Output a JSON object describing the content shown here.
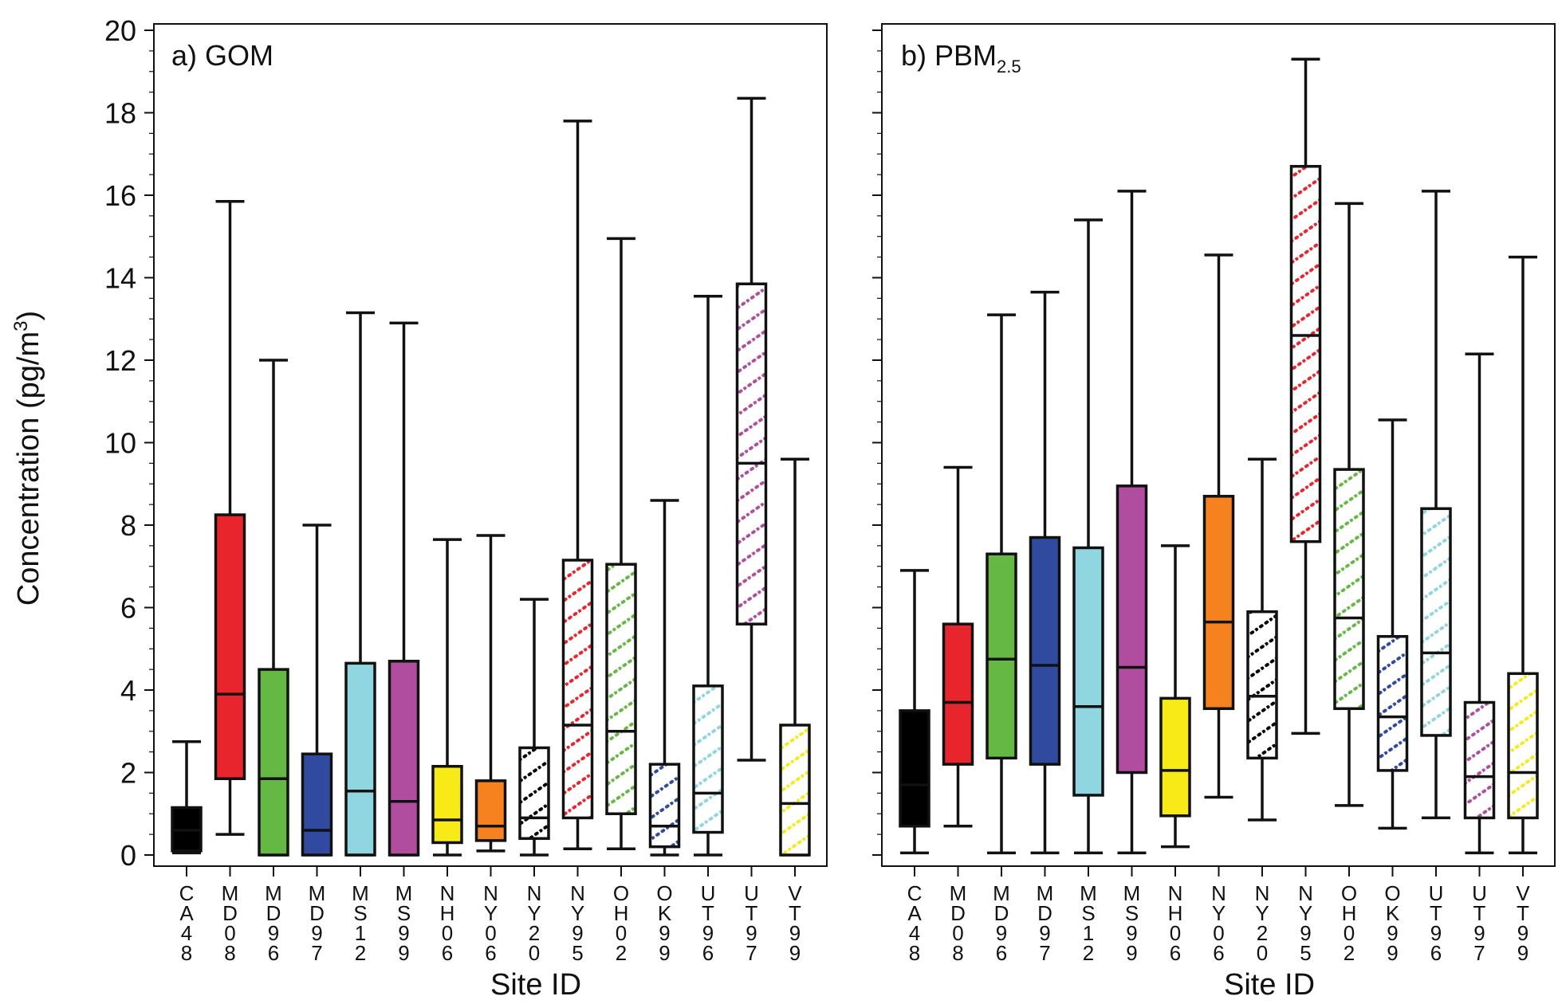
{
  "figure": {
    "ylabel": "Concentration (pg/m",
    "ylabel_sup": "3",
    "ylabel_close": ")"
  },
  "chart_data": [
    {
      "type": "box",
      "panel_label": "a) GOM",
      "panel_label_main": "a) GOM",
      "panel_label_sub": "",
      "xlabel": "Site ID",
      "ylim": [
        0,
        20
      ],
      "yticks": [
        0,
        2,
        4,
        6,
        8,
        10,
        12,
        14,
        16,
        18,
        20
      ],
      "categories": [
        "CA48",
        "MD08",
        "MD96",
        "MD97",
        "MS12",
        "MS99",
        "NH06",
        "NY06",
        "NY20",
        "NY95",
        "OH02",
        "OK99",
        "UT96",
        "UT97",
        "VT99"
      ],
      "boxes": [
        {
          "site": "CA48",
          "min": 0.05,
          "q1": 0.1,
          "median": 0.6,
          "q3": 1.15,
          "max": 2.75,
          "color": "#000000",
          "hatched": false
        },
        {
          "site": "MD08",
          "min": 0.5,
          "q1": 1.85,
          "median": 3.9,
          "q3": 8.25,
          "max": 15.85,
          "color": "#e8242c",
          "hatched": false
        },
        {
          "site": "MD96",
          "min": 0.0,
          "q1": 0.0,
          "median": 1.85,
          "q3": 4.5,
          "max": 12.0,
          "color": "#66b844",
          "hatched": false
        },
        {
          "site": "MD97",
          "min": 0.0,
          "q1": 0.0,
          "median": 0.6,
          "q3": 2.45,
          "max": 8.0,
          "color": "#2f4a9e",
          "hatched": false
        },
        {
          "site": "MS12",
          "min": 0.0,
          "q1": 0.0,
          "median": 1.55,
          "q3": 4.65,
          "max": 13.15,
          "color": "#8fd6e0",
          "hatched": false
        },
        {
          "site": "MS99",
          "min": 0.0,
          "q1": 0.0,
          "median": 1.3,
          "q3": 4.7,
          "max": 12.9,
          "color": "#b04d9e",
          "hatched": false
        },
        {
          "site": "NH06",
          "min": 0.0,
          "q1": 0.3,
          "median": 0.85,
          "q3": 2.15,
          "max": 7.65,
          "color": "#f7ea17",
          "hatched": false
        },
        {
          "site": "NY06",
          "min": 0.1,
          "q1": 0.35,
          "median": 0.7,
          "q3": 1.8,
          "max": 7.75,
          "color": "#f5821f",
          "hatched": false
        },
        {
          "site": "NY20",
          "min": 0.0,
          "q1": 0.4,
          "median": 0.9,
          "q3": 2.6,
          "max": 6.2,
          "color": "#000000",
          "hatched": true
        },
        {
          "site": "NY95",
          "min": 0.15,
          "q1": 0.9,
          "median": 3.15,
          "q3": 7.15,
          "max": 17.8,
          "color": "#e8242c",
          "hatched": true
        },
        {
          "site": "OH02",
          "min": 0.15,
          "q1": 1.0,
          "median": 3.0,
          "q3": 7.05,
          "max": 14.95,
          "color": "#66b844",
          "hatched": true
        },
        {
          "site": "OK99",
          "min": 0.0,
          "q1": 0.2,
          "median": 0.7,
          "q3": 2.2,
          "max": 8.6,
          "color": "#2f4a9e",
          "hatched": true
        },
        {
          "site": "UT96",
          "min": 0.0,
          "q1": 0.55,
          "median": 1.5,
          "q3": 4.1,
          "max": 13.55,
          "color": "#8fd6e0",
          "hatched": true
        },
        {
          "site": "UT97",
          "min": 2.3,
          "q1": 5.6,
          "median": 9.5,
          "q3": 13.85,
          "max": 18.35,
          "color": "#b04d9e",
          "hatched": true
        },
        {
          "site": "VT99",
          "min": 0.0,
          "q1": 0.0,
          "median": 1.25,
          "q3": 3.15,
          "max": 9.6,
          "color": "#f7ea17",
          "hatched": true
        }
      ]
    },
    {
      "type": "box",
      "panel_label": "b) PBM2.5",
      "panel_label_main": "b) PBM",
      "panel_label_sub": "2.5",
      "xlabel": "Site ID",
      "ylim": [
        0,
        20
      ],
      "yticks": [
        0,
        2,
        4,
        6,
        8,
        10,
        12,
        14,
        16,
        18,
        20
      ],
      "categories": [
        "CA48",
        "MD08",
        "MD96",
        "MD97",
        "MS12",
        "MS99",
        "NH06",
        "NY06",
        "NY20",
        "NY95",
        "OH02",
        "OK99",
        "UT96",
        "UT97",
        "VT99"
      ],
      "boxes": [
        {
          "site": "CA48",
          "min": 0.05,
          "q1": 0.7,
          "median": 1.7,
          "q3": 3.5,
          "max": 6.9,
          "color": "#000000",
          "hatched": false
        },
        {
          "site": "MD08",
          "min": 0.7,
          "q1": 2.2,
          "median": 3.7,
          "q3": 5.6,
          "max": 9.4,
          "color": "#e8242c",
          "hatched": false
        },
        {
          "site": "MD96",
          "min": 0.05,
          "q1": 2.35,
          "median": 4.75,
          "q3": 7.3,
          "max": 13.1,
          "color": "#66b844",
          "hatched": false
        },
        {
          "site": "MD97",
          "min": 0.05,
          "q1": 2.2,
          "median": 4.6,
          "q3": 7.7,
          "max": 13.65,
          "color": "#2f4a9e",
          "hatched": false
        },
        {
          "site": "MS12",
          "min": 0.05,
          "q1": 1.45,
          "median": 3.6,
          "q3": 7.45,
          "max": 15.4,
          "color": "#8fd6e0",
          "hatched": false
        },
        {
          "site": "MS99",
          "min": 0.05,
          "q1": 2.0,
          "median": 4.55,
          "q3": 8.95,
          "max": 16.1,
          "color": "#b04d9e",
          "hatched": false
        },
        {
          "site": "NH06",
          "min": 0.2,
          "q1": 0.95,
          "median": 2.05,
          "q3": 3.8,
          "max": 7.5,
          "color": "#f7ea17",
          "hatched": false
        },
        {
          "site": "NY06",
          "min": 1.4,
          "q1": 3.55,
          "median": 5.65,
          "q3": 8.7,
          "max": 14.55,
          "color": "#f5821f",
          "hatched": false
        },
        {
          "site": "NY20",
          "min": 0.85,
          "q1": 2.35,
          "median": 3.85,
          "q3": 5.9,
          "max": 9.6,
          "color": "#000000",
          "hatched": true
        },
        {
          "site": "NY95",
          "min": 2.95,
          "q1": 7.6,
          "median": 12.6,
          "q3": 16.7,
          "max": 19.3,
          "color": "#e8242c",
          "hatched": true
        },
        {
          "site": "OH02",
          "min": 1.2,
          "q1": 3.55,
          "median": 5.75,
          "q3": 9.35,
          "max": 15.8,
          "color": "#66b844",
          "hatched": true
        },
        {
          "site": "OK99",
          "min": 0.65,
          "q1": 2.05,
          "median": 3.35,
          "q3": 5.3,
          "max": 10.55,
          "color": "#2f4a9e",
          "hatched": true
        },
        {
          "site": "UT96",
          "min": 0.9,
          "q1": 2.9,
          "median": 4.9,
          "q3": 8.4,
          "max": 16.1,
          "color": "#8fd6e0",
          "hatched": true
        },
        {
          "site": "UT97",
          "min": 0.05,
          "q1": 0.9,
          "median": 1.9,
          "q3": 3.7,
          "max": 12.15,
          "color": "#b04d9e",
          "hatched": true
        },
        {
          "site": "VT99",
          "min": 0.05,
          "q1": 0.9,
          "median": 2.0,
          "q3": 4.4,
          "max": 14.5,
          "color": "#f7ea17",
          "hatched": true
        }
      ]
    }
  ]
}
